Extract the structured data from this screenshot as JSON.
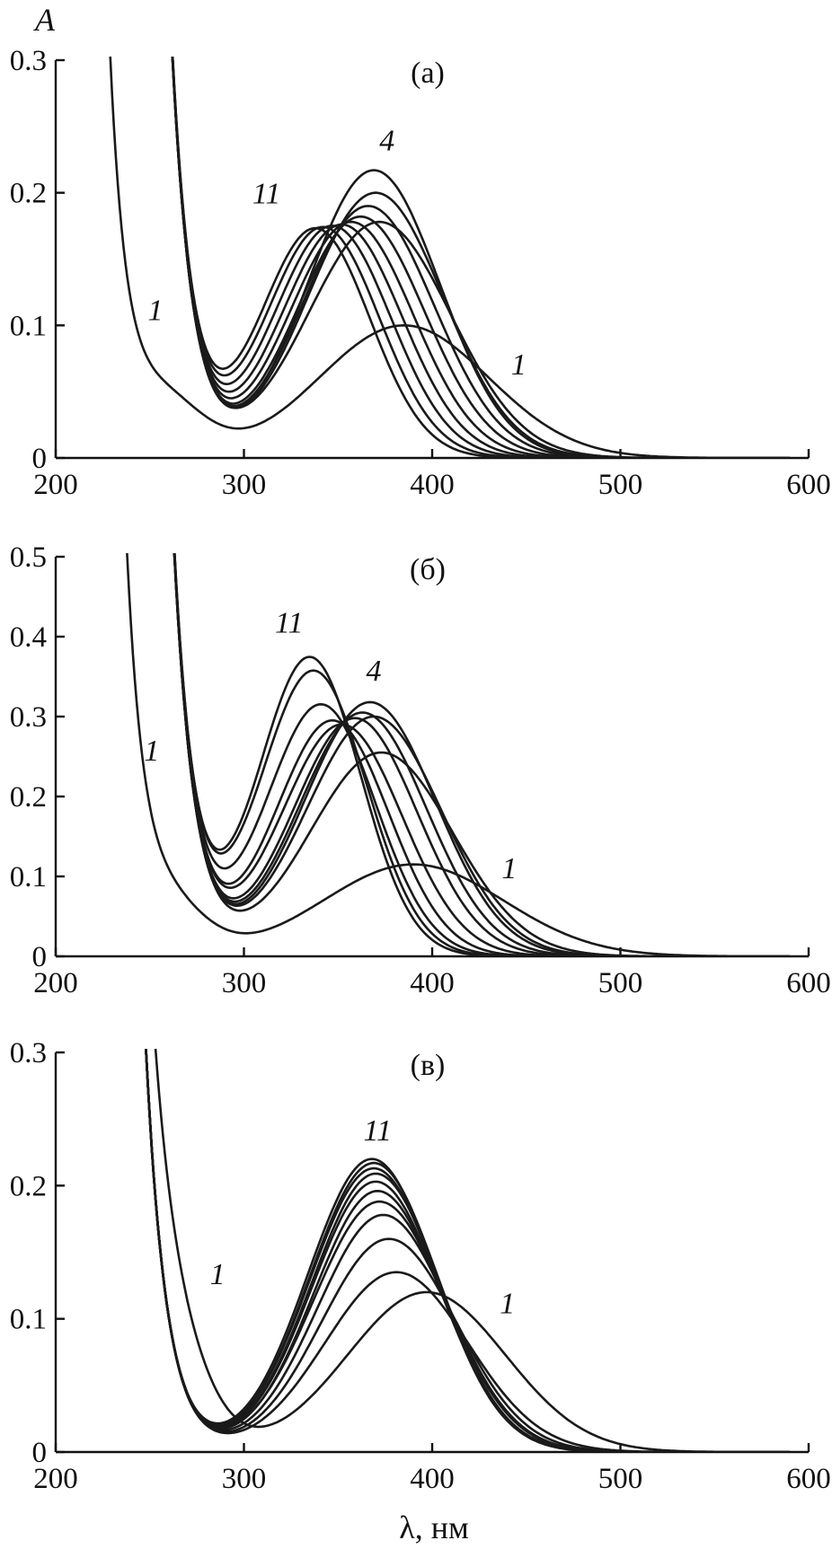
{
  "figure": {
    "ylabel": "A",
    "xlabel": "λ, нм"
  },
  "chart_data": [
    {
      "type": "line",
      "panel_label": "(а)",
      "xlim": [
        200,
        600
      ],
      "ylim": [
        0,
        0.3
      ],
      "xticks": [
        200,
        300,
        400,
        500,
        600
      ],
      "yticks": [
        0,
        0.1,
        0.2,
        0.3
      ],
      "ytick_labels": [
        "0",
        "0.1",
        "0.2",
        "0.3"
      ],
      "annotations": [
        {
          "text": "11",
          "x": 312,
          "y": 0.192
        },
        {
          "text": "4",
          "x": 376,
          "y": 0.232
        },
        {
          "text": "1",
          "x": 253,
          "y": 0.104
        },
        {
          "text": "1",
          "x": 446,
          "y": 0.063
        }
      ],
      "series": [
        {
          "peak": 385,
          "amp": 0.1,
          "width": 45,
          "uv_amp": 0.2,
          "uv_decay": 9,
          "uv_offset": 232,
          "base_hump": 0.045
        },
        {
          "peak": 372,
          "amp": 0.178,
          "width": 38,
          "uv_amp": 0.3,
          "uv_decay": 11,
          "uv_offset": 262,
          "base_hump": 0.0
        },
        {
          "peak": 370,
          "amp": 0.2,
          "width": 36,
          "uv_amp": 0.3,
          "uv_decay": 11,
          "uv_offset": 262,
          "base_hump": 0.0
        },
        {
          "peak": 369,
          "amp": 0.217,
          "width": 35,
          "uv_amp": 0.3,
          "uv_decay": 11,
          "uv_offset": 262,
          "base_hump": 0.0
        },
        {
          "peak": 366,
          "amp": 0.19,
          "width": 35,
          "uv_amp": 0.3,
          "uv_decay": 11,
          "uv_offset": 262,
          "base_hump": 0.0
        },
        {
          "peak": 362,
          "amp": 0.182,
          "width": 34,
          "uv_amp": 0.3,
          "uv_decay": 11,
          "uv_offset": 262,
          "base_hump": 0.0
        },
        {
          "peak": 357,
          "amp": 0.178,
          "width": 33,
          "uv_amp": 0.3,
          "uv_decay": 11,
          "uv_offset": 262,
          "base_hump": 0.0
        },
        {
          "peak": 352,
          "amp": 0.176,
          "width": 32,
          "uv_amp": 0.3,
          "uv_decay": 11,
          "uv_offset": 262,
          "base_hump": 0.0
        },
        {
          "peak": 347,
          "amp": 0.175,
          "width": 31,
          "uv_amp": 0.3,
          "uv_decay": 11,
          "uv_offset": 262,
          "base_hump": 0.0
        },
        {
          "peak": 342,
          "amp": 0.174,
          "width": 30,
          "uv_amp": 0.3,
          "uv_decay": 11,
          "uv_offset": 262,
          "base_hump": 0.0
        },
        {
          "peak": 338,
          "amp": 0.173,
          "width": 29,
          "uv_amp": 0.3,
          "uv_decay": 11,
          "uv_offset": 262,
          "base_hump": 0.0
        }
      ]
    },
    {
      "type": "line",
      "panel_label": "(б)",
      "xlim": [
        200,
        600
      ],
      "ylim": [
        0,
        0.5
      ],
      "xticks": [
        200,
        300,
        400,
        500,
        600
      ],
      "yticks": [
        0,
        0.1,
        0.2,
        0.3,
        0.4,
        0.5
      ],
      "ytick_labels": [
        "0",
        "0.1",
        "0.2",
        "0.3",
        "0.4",
        "0.5"
      ],
      "annotations": [
        {
          "text": "11",
          "x": 324,
          "y": 0.405
        },
        {
          "text": "4",
          "x": 369,
          "y": 0.345
        },
        {
          "text": "1",
          "x": 251,
          "y": 0.245
        },
        {
          "text": "1",
          "x": 441,
          "y": 0.098
        }
      ],
      "series": [
        {
          "peak": 390,
          "amp": 0.115,
          "width": 48,
          "uv_amp": 0.5,
          "uv_decay": 9,
          "uv_offset": 237,
          "base_hump": 0.07
        },
        {
          "peak": 373,
          "amp": 0.255,
          "width": 38,
          "uv_amp": 0.5,
          "uv_decay": 11,
          "uv_offset": 263,
          "base_hump": 0.0
        },
        {
          "peak": 369,
          "amp": 0.3,
          "width": 36,
          "uv_amp": 0.5,
          "uv_decay": 11,
          "uv_offset": 263,
          "base_hump": 0.0
        },
        {
          "peak": 367,
          "amp": 0.318,
          "width": 35,
          "uv_amp": 0.5,
          "uv_decay": 11,
          "uv_offset": 263,
          "base_hump": 0.0
        },
        {
          "peak": 363,
          "amp": 0.305,
          "width": 34,
          "uv_amp": 0.5,
          "uv_decay": 11,
          "uv_offset": 263,
          "base_hump": 0.0
        },
        {
          "peak": 359,
          "amp": 0.298,
          "width": 33,
          "uv_amp": 0.5,
          "uv_decay": 11,
          "uv_offset": 263,
          "base_hump": 0.0
        },
        {
          "peak": 352,
          "amp": 0.29,
          "width": 32,
          "uv_amp": 0.5,
          "uv_decay": 11,
          "uv_offset": 263,
          "base_hump": 0.0
        },
        {
          "peak": 347,
          "amp": 0.295,
          "width": 30,
          "uv_amp": 0.5,
          "uv_decay": 11,
          "uv_offset": 263,
          "base_hump": 0.0
        },
        {
          "peak": 341,
          "amp": 0.315,
          "width": 29,
          "uv_amp": 0.5,
          "uv_decay": 11,
          "uv_offset": 263,
          "base_hump": 0.0
        },
        {
          "peak": 337,
          "amp": 0.357,
          "width": 28,
          "uv_amp": 0.5,
          "uv_decay": 11,
          "uv_offset": 263,
          "base_hump": 0.0
        },
        {
          "peak": 335,
          "amp": 0.374,
          "width": 27,
          "uv_amp": 0.5,
          "uv_decay": 11,
          "uv_offset": 263,
          "base_hump": 0.0
        }
      ]
    },
    {
      "type": "line",
      "panel_label": "(в)",
      "xlim": [
        200,
        600
      ],
      "ylim": [
        0,
        0.3
      ],
      "xticks": [
        200,
        300,
        400,
        500,
        600
      ],
      "yticks": [
        0,
        0.1,
        0.2,
        0.3
      ],
      "ytick_labels": [
        "0",
        "0.1",
        "0.2",
        "0.3"
      ],
      "xlabel": "λ, нм",
      "annotations": [
        {
          "text": "11",
          "x": 371,
          "y": 0.234
        },
        {
          "text": "1",
          "x": 286,
          "y": 0.126
        },
        {
          "text": "1",
          "x": 440,
          "y": 0.104
        }
      ],
      "series": [
        {
          "peak": 397,
          "amp": 0.12,
          "width": 42,
          "uv_amp": 0.3,
          "uv_decay": 12,
          "uv_offset": 250,
          "base_hump": 0.07
        },
        {
          "peak": 381,
          "amp": 0.135,
          "width": 38,
          "uv_amp": 0.3,
          "uv_decay": 11,
          "uv_offset": 248,
          "base_hump": 0.0
        },
        {
          "peak": 377,
          "amp": 0.16,
          "width": 36,
          "uv_amp": 0.3,
          "uv_decay": 11,
          "uv_offset": 248,
          "base_hump": 0.0
        },
        {
          "peak": 374,
          "amp": 0.178,
          "width": 35,
          "uv_amp": 0.3,
          "uv_decay": 11,
          "uv_offset": 248,
          "base_hump": 0.0
        },
        {
          "peak": 372,
          "amp": 0.188,
          "width": 35,
          "uv_amp": 0.3,
          "uv_decay": 11,
          "uv_offset": 248,
          "base_hump": 0.0
        },
        {
          "peak": 371,
          "amp": 0.196,
          "width": 34,
          "uv_amp": 0.3,
          "uv_decay": 11,
          "uv_offset": 248,
          "base_hump": 0.0
        },
        {
          "peak": 370,
          "amp": 0.203,
          "width": 34,
          "uv_amp": 0.3,
          "uv_decay": 11,
          "uv_offset": 248,
          "base_hump": 0.0
        },
        {
          "peak": 370,
          "amp": 0.209,
          "width": 34,
          "uv_amp": 0.3,
          "uv_decay": 11,
          "uv_offset": 248,
          "base_hump": 0.0
        },
        {
          "peak": 369,
          "amp": 0.213,
          "width": 34,
          "uv_amp": 0.3,
          "uv_decay": 11,
          "uv_offset": 248,
          "base_hump": 0.0
        },
        {
          "peak": 369,
          "amp": 0.217,
          "width": 34,
          "uv_amp": 0.3,
          "uv_decay": 11,
          "uv_offset": 248,
          "base_hump": 0.0
        },
        {
          "peak": 368,
          "amp": 0.22,
          "width": 34,
          "uv_amp": 0.3,
          "uv_decay": 11,
          "uv_offset": 248,
          "base_hump": 0.0
        }
      ]
    }
  ]
}
